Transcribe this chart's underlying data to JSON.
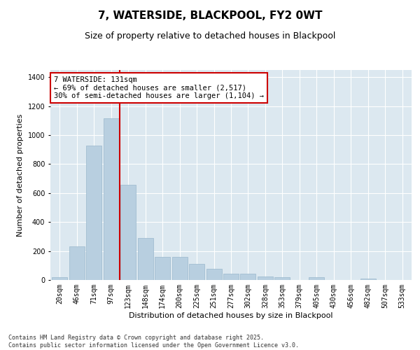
{
  "title": "7, WATERSIDE, BLACKPOOL, FY2 0WT",
  "subtitle": "Size of property relative to detached houses in Blackpool",
  "xlabel": "Distribution of detached houses by size in Blackpool",
  "ylabel": "Number of detached properties",
  "bar_color": "#b8cfe0",
  "bar_edgecolor": "#9ab8cc",
  "background_color": "#dce8f0",
  "grid_color": "#ffffff",
  "vline_color": "#cc0000",
  "vline_pos": 3.5,
  "annotation_text": "7 WATERSIDE: 131sqm\n← 69% of detached houses are smaller (2,517)\n30% of semi-detached houses are larger (1,104) →",
  "annotation_box_color": "#cc0000",
  "categories": [
    "20sqm",
    "46sqm",
    "71sqm",
    "97sqm",
    "123sqm",
    "148sqm",
    "174sqm",
    "200sqm",
    "225sqm",
    "251sqm",
    "277sqm",
    "302sqm",
    "328sqm",
    "353sqm",
    "379sqm",
    "405sqm",
    "430sqm",
    "456sqm",
    "482sqm",
    "507sqm",
    "533sqm"
  ],
  "values": [
    18,
    230,
    930,
    1115,
    655,
    290,
    160,
    160,
    110,
    78,
    42,
    42,
    25,
    20,
    0,
    20,
    0,
    0,
    8,
    0,
    0
  ],
  "ylim": [
    0,
    1450
  ],
  "yticks": [
    0,
    200,
    400,
    600,
    800,
    1000,
    1200,
    1400
  ],
  "footnote": "Contains HM Land Registry data © Crown copyright and database right 2025.\nContains public sector information licensed under the Open Government Licence v3.0.",
  "title_fontsize": 11,
  "subtitle_fontsize": 9,
  "axis_label_fontsize": 8,
  "tick_fontsize": 7,
  "annotation_fontsize": 7.5,
  "footnote_fontsize": 6
}
